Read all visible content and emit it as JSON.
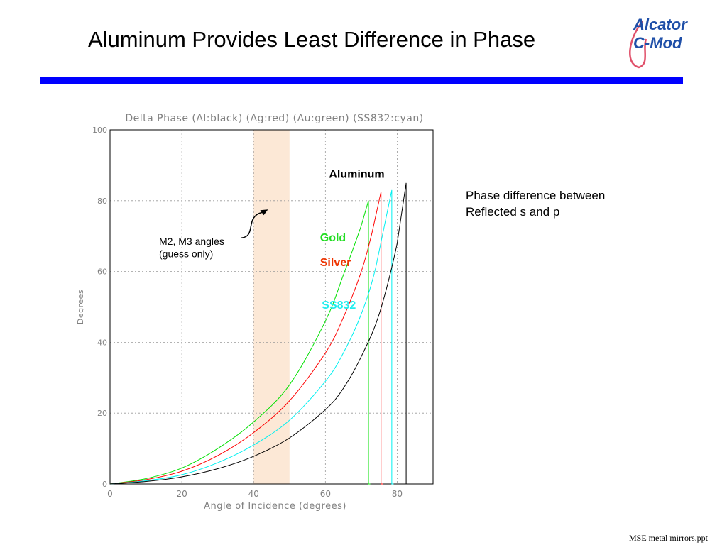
{
  "slide": {
    "title": "Aluminum Provides Least Difference in Phase",
    "accent_color": "#0000ff",
    "logo": {
      "line1": "Alcator",
      "line2": "C-Mod",
      "color": "#1f4fa8",
      "ribbon_color": "#e0506a"
    },
    "side_note": [
      "Phase difference between",
      "Reflected s and p"
    ],
    "footer": "MSE metal mirrors.ppt"
  },
  "chart_data": {
    "type": "line",
    "title": "Delta Phase (Al:black) (Ag:red) (Au:green) (SS832:cyan)",
    "xlabel": "Angle of Incidence (degrees)",
    "ylabel": "Degrees",
    "xlim": [
      0,
      90
    ],
    "ylim": [
      0,
      100
    ],
    "xticks": [
      0,
      20,
      40,
      60,
      80
    ],
    "yticks": [
      0,
      20,
      40,
      60,
      80,
      100
    ],
    "grid": true,
    "highlight_band": {
      "x": [
        40,
        50
      ],
      "color": "#fce8d6"
    },
    "series": [
      {
        "name": "Gold",
        "color": "#00e000",
        "label_color": "#22dd22",
        "x": [
          0,
          10,
          20,
          30,
          40,
          50,
          60,
          65,
          70,
          72,
          72,
          72.5
        ],
        "y": [
          0,
          1.5,
          4.5,
          10,
          17.5,
          28,
          46,
          59,
          73,
          80,
          0,
          0
        ]
      },
      {
        "name": "Silver",
        "color": "#ff0000",
        "label_color": "#ee3300",
        "x": [
          0,
          10,
          20,
          30,
          40,
          50,
          60,
          65,
          70,
          73,
          75.5,
          75.5,
          76
        ],
        "y": [
          0,
          1.2,
          3.6,
          8,
          14.5,
          23.5,
          37,
          47,
          60,
          71,
          82.5,
          0,
          0
        ]
      },
      {
        "name": "SS832",
        "color": "#00f0f0",
        "label_color": "#22eeee",
        "x": [
          0,
          10,
          20,
          30,
          40,
          50,
          60,
          65,
          70,
          74,
          78.5,
          78.5,
          79
        ],
        "y": [
          0,
          0.9,
          2.6,
          6,
          11,
          18,
          29,
          37,
          48,
          61,
          83,
          0,
          0
        ]
      },
      {
        "name": "Aluminum",
        "color": "#000000",
        "label_color": "#000000",
        "x": [
          0,
          10,
          20,
          30,
          40,
          50,
          60,
          65,
          70,
          75,
          80,
          82.5,
          82.5,
          83
        ],
        "y": [
          0,
          0.7,
          2,
          4.3,
          7.8,
          13,
          21,
          27,
          36,
          48,
          68,
          85,
          0,
          0
        ]
      }
    ],
    "annotations": [
      {
        "name": "Aluminum",
        "x": 61,
        "y": 86.5,
        "color": "#000000"
      },
      {
        "name": "Gold",
        "x": 58.5,
        "y": 68.5,
        "color": "#22dd22"
      },
      {
        "name": "Silver",
        "x": 58.5,
        "y": 61.5,
        "color": "#ee3300"
      },
      {
        "name": "SS832",
        "x": 59,
        "y": 49.5,
        "color": "#22eeee"
      }
    ],
    "callout": {
      "text": [
        "M2, M3 angles",
        "(guess only)"
      ],
      "arrow_tip": {
        "x": 44,
        "y": 77.5
      }
    }
  }
}
